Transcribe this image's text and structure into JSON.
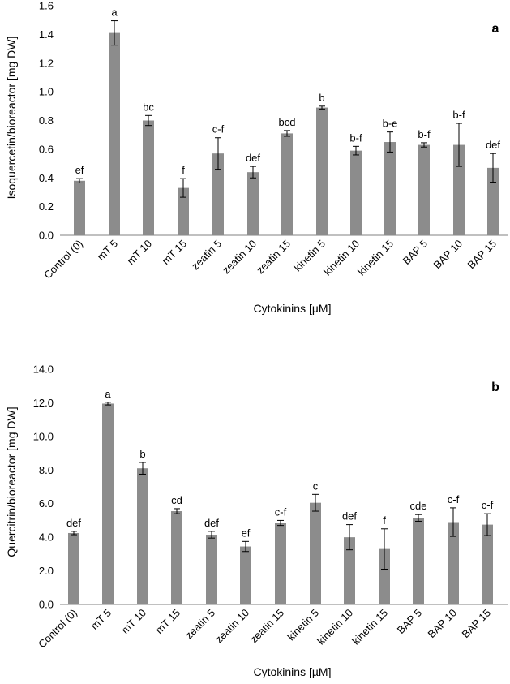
{
  "colors": {
    "bar": "#8c8c8c",
    "axis": "#808080",
    "text": "#000000"
  },
  "chart_data": [
    {
      "type": "bar",
      "panel_label": "a",
      "ylabel": "Isoquercetin/bioreactor [mg DW]",
      "xlabel": "Cytokinins [µM]",
      "ylim": [
        0,
        1.6
      ],
      "yticks": [
        "0.0",
        "0.2",
        "0.4",
        "0.6",
        "0.8",
        "1.0",
        "1.2",
        "1.4",
        "1.6"
      ],
      "categories": [
        "Control (0)",
        "mT 5",
        "mT 10",
        "mT 15",
        "zeatin 5",
        "zeatin 10",
        "zeatin 15",
        "kinetin 5",
        "kinetin 10",
        "kinetin 15",
        "BAP 5",
        "BAP 10",
        "BAP 15"
      ],
      "values": [
        0.38,
        1.41,
        0.8,
        0.33,
        0.57,
        0.44,
        0.71,
        0.89,
        0.59,
        0.65,
        0.63,
        0.63,
        0.47
      ],
      "errors": [
        0.015,
        0.085,
        0.035,
        0.065,
        0.11,
        0.04,
        0.02,
        0.01,
        0.03,
        0.07,
        0.015,
        0.15,
        0.1
      ],
      "letters": [
        "ef",
        "a",
        "bc",
        "f",
        "c-f",
        "def",
        "bcd",
        "b",
        "b-f",
        "b-e",
        "b-f",
        "b-f",
        "def"
      ]
    },
    {
      "type": "bar",
      "panel_label": "b",
      "ylabel": "Quercitrin/bioreactor [mg DW]",
      "xlabel": "Cytokinins [µM]",
      "ylim": [
        0,
        14
      ],
      "yticks": [
        "0.0",
        "2.0",
        "4.0",
        "6.0",
        "8.0",
        "10.0",
        "12.0",
        "14.0"
      ],
      "categories": [
        "Control (0)",
        "mT 5",
        "mT 10",
        "mT 15",
        "zeatin 5",
        "zeatin 10",
        "zeatin 15",
        "kinetin 5",
        "kinetin 10",
        "kinetin 15",
        "BAP 5",
        "BAP 10",
        "BAP 15"
      ],
      "values": [
        4.25,
        11.95,
        8.1,
        5.55,
        4.15,
        3.45,
        4.85,
        6.05,
        4.0,
        3.3,
        5.15,
        4.9,
        4.75
      ],
      "errors": [
        0.1,
        0.08,
        0.35,
        0.15,
        0.2,
        0.3,
        0.15,
        0.5,
        0.75,
        1.2,
        0.2,
        0.85,
        0.65
      ],
      "letters": [
        "def",
        "a",
        "b",
        "cd",
        "def",
        "ef",
        "c-f",
        "c",
        "def",
        "f",
        "cde",
        "c-f",
        "c-f"
      ]
    }
  ]
}
